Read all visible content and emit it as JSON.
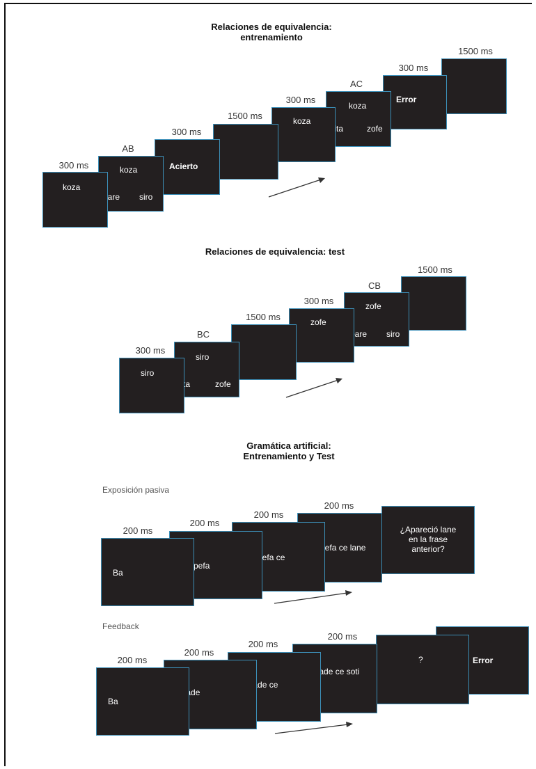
{
  "colors": {
    "screen_fill": "#231f20",
    "screen_border": "#3c8fb8",
    "text": "#ffffff"
  },
  "section1": {
    "title_line1": "Relaciones de equivalencia:",
    "title_line2": "entrenamiento",
    "steps": [
      {
        "label": "300 ms",
        "text": "koza"
      },
      {
        "label": "AB",
        "top": "koza",
        "left": "bare",
        "right": "siro"
      },
      {
        "label": "300 ms",
        "text": "Acierto"
      },
      {
        "label": "1500 ms",
        "text": ""
      },
      {
        "label": "300 ms",
        "text": "koza"
      },
      {
        "label": "AC",
        "top": "koza",
        "left": "fita",
        "right": "zofe"
      },
      {
        "label": "300 ms",
        "text": "Error"
      },
      {
        "label": "1500 ms",
        "text": ""
      }
    ]
  },
  "section2": {
    "title": "Relaciones de equivalencia: test",
    "steps": [
      {
        "label": "300 ms",
        "text": "siro"
      },
      {
        "label": "BC",
        "top": "siro",
        "left": "fita",
        "right": "zofe"
      },
      {
        "label": "1500 ms",
        "text": ""
      },
      {
        "label": "300 ms",
        "text": "zofe"
      },
      {
        "label": "CB",
        "top": "zofe",
        "left": "bare",
        "right": "siro"
      },
      {
        "label": "1500 ms",
        "text": ""
      }
    ]
  },
  "section3": {
    "title_line1": "Gramática artificial:",
    "title_line2": "Entrenamiento  y Test",
    "passive": {
      "subtitle": "Exposición pasiva",
      "steps": [
        {
          "label": "200 ms",
          "text": "Ba"
        },
        {
          "label": "200 ms",
          "text": "Ba pefa"
        },
        {
          "label": "200 ms",
          "text": "Ba pefa ce"
        },
        {
          "label": "200 ms",
          "text": "Ba pefa ce lane"
        },
        {
          "label": "",
          "text": [
            "¿Apareció lane",
            "en la frase",
            "anterior?"
          ]
        }
      ]
    },
    "feedback": {
      "subtitle": "Feedback",
      "steps": [
        {
          "label": "200 ms",
          "text": "Ba"
        },
        {
          "label": "200 ms",
          "text": "Ba fade"
        },
        {
          "label": "200 ms",
          "text": "Ba fade ce"
        },
        {
          "label": "200 ms",
          "text": "Ba fade ce soti"
        },
        {
          "label": "",
          "text": "?"
        },
        {
          "label": "",
          "text": "Error"
        }
      ]
    }
  }
}
